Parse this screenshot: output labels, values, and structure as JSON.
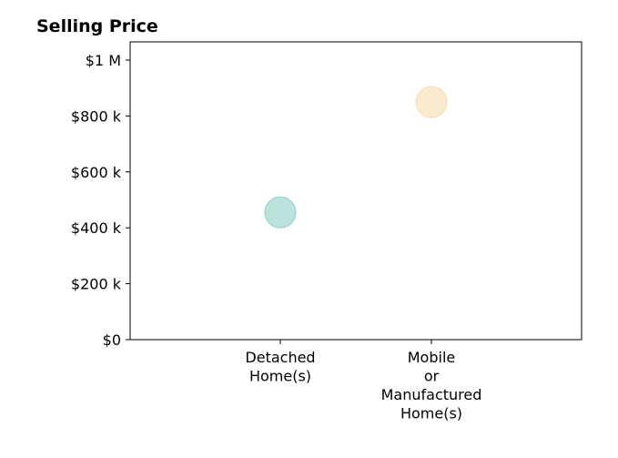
{
  "chart_data": {
    "type": "scatter",
    "title": "Selling Price",
    "xlabel": "",
    "ylabel": "",
    "categories": [
      [
        "Detached",
        "Home(s)"
      ],
      [
        "Mobile",
        "or",
        "Manufactured",
        "Home(s)"
      ]
    ],
    "points": [
      {
        "category_index": 0,
        "value": 455000,
        "color": "#8fcfc8"
      },
      {
        "category_index": 1,
        "value": 850000,
        "color": "#f3ddb1"
      }
    ],
    "ylim": [
      0,
      1065000
    ],
    "y_ticks": [
      {
        "value": 0,
        "label": "$0"
      },
      {
        "value": 200000,
        "label": "$200 k"
      },
      {
        "value": 400000,
        "label": "$400 k"
      },
      {
        "value": 600000,
        "label": "$600 k"
      },
      {
        "value": 800000,
        "label": "$800 k"
      },
      {
        "value": 1000000,
        "label": "$1 M"
      }
    ],
    "grid": false,
    "legend": "none"
  }
}
